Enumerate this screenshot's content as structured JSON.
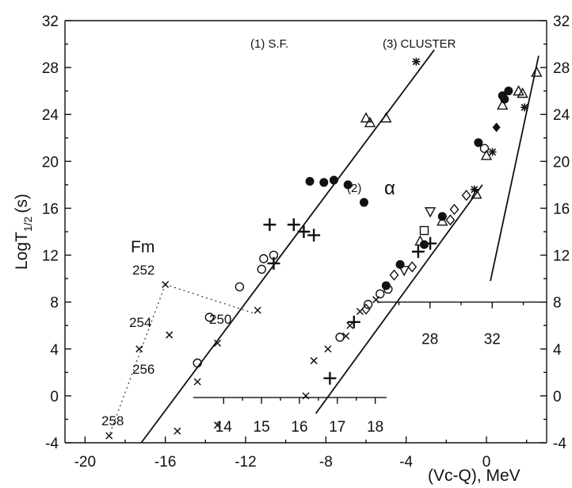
{
  "chart_data": {
    "type": "scatter",
    "xlabel": "(Vc-Q), MeV",
    "ylabel_main": "LogT",
    "ylabel_sub": "1/2",
    "ylabel_unit": "(s)",
    "xlim": [
      -21,
      3
    ],
    "ylim": [
      -4,
      32
    ],
    "x_ticks": [
      -20,
      -16,
      -12,
      -8,
      -4,
      0
    ],
    "y_ticks": [
      -4,
      0,
      4,
      8,
      12,
      16,
      20,
      24,
      28,
      32
    ],
    "grid": false,
    "annotations": {
      "sf": "(1)  S.F.",
      "cluster": "(3)  CLUSTER",
      "alpha_num": "(2)",
      "alpha_sym": "α",
      "fm": "Fm",
      "isotopes": [
        "252",
        "254",
        "250",
        "256",
        "258"
      ]
    },
    "inset_alpha_axis": {
      "ticks": [
        14,
        15,
        16,
        17,
        18
      ],
      "range": [
        13.2,
        18.3
      ]
    },
    "inset_cluster_axis": {
      "ticks": [
        28,
        32
      ],
      "range": [
        24.6,
        35.5
      ]
    },
    "series": [
      {
        "id": "sf",
        "fit_line": [
          [
            -17.2,
            -4
          ],
          [
            -2.6,
            29.5
          ]
        ],
        "points": [
          {
            "x": -3.5,
            "y": 28.5,
            "m": "asterisk"
          },
          {
            "x": -6.0,
            "y": 23.7,
            "m": "triangle"
          },
          {
            "x": -5.8,
            "y": 23.3,
            "m": "triangle"
          },
          {
            "x": -5.0,
            "y": 23.7,
            "m": "triangle"
          },
          {
            "x": -8.8,
            "y": 18.3,
            "m": "filled"
          },
          {
            "x": -8.1,
            "y": 18.2,
            "m": "filled"
          },
          {
            "x": -7.6,
            "y": 18.4,
            "m": "filled"
          },
          {
            "x": -6.9,
            "y": 18.0,
            "m": "filled"
          },
          {
            "x": -6.1,
            "y": 16.5,
            "m": "filled"
          },
          {
            "x": -10.8,
            "y": 14.6,
            "m": "plus"
          },
          {
            "x": -9.6,
            "y": 14.6,
            "m": "plus"
          },
          {
            "x": -9.1,
            "y": 14.0,
            "m": "plus"
          },
          {
            "x": -8.6,
            "y": 13.7,
            "m": "plus"
          },
          {
            "x": -10.6,
            "y": 11.3,
            "m": "plus"
          },
          {
            "x": -11.1,
            "y": 11.7,
            "m": "circle"
          },
          {
            "x": -10.6,
            "y": 12.0,
            "m": "circle"
          },
          {
            "x": -11.2,
            "y": 10.8,
            "m": "circle"
          },
          {
            "x": -12.3,
            "y": 9.3,
            "m": "circle"
          },
          {
            "x": -13.8,
            "y": 6.7,
            "m": "circle"
          },
          {
            "x": -14.4,
            "y": 2.8,
            "m": "circle"
          }
        ]
      },
      {
        "id": "fm",
        "points": [
          {
            "x": -16.0,
            "y": 9.5,
            "m": "cross"
          },
          {
            "x": -11.4,
            "y": 7.3,
            "m": "cross"
          },
          {
            "x": -15.8,
            "y": 5.2,
            "m": "cross"
          },
          {
            "x": -17.3,
            "y": 4.0,
            "m": "cross"
          },
          {
            "x": -13.4,
            "y": 4.5,
            "m": "cross"
          },
          {
            "x": -14.4,
            "y": 1.2,
            "m": "cross"
          },
          {
            "x": -15.4,
            "y": -3.0,
            "m": "cross"
          },
          {
            "x": -13.4,
            "y": -2.5,
            "m": "cross"
          },
          {
            "x": -18.8,
            "y": -3.4,
            "m": "cross"
          }
        ]
      },
      {
        "id": "alpha",
        "fit_line": [
          [
            -8.5,
            -1.5
          ],
          [
            -0.2,
            18.0
          ]
        ],
        "points": [
          {
            "x": -0.6,
            "y": 17.6,
            "m": "asterisk"
          },
          {
            "x": -0.5,
            "y": 17.2,
            "m": "triangle"
          },
          {
            "x": -2.2,
            "y": 15.3,
            "m": "filled"
          },
          {
            "x": -2.2,
            "y": 14.9,
            "m": "triangle"
          },
          {
            "x": -3.1,
            "y": 12.9,
            "m": "filled"
          },
          {
            "x": -2.8,
            "y": 13.0,
            "m": "plus"
          },
          {
            "x": -3.4,
            "y": 12.3,
            "m": "plus"
          },
          {
            "x": -4.3,
            "y": 11.2,
            "m": "filled"
          },
          {
            "x": -4.1,
            "y": 10.7,
            "m": "invtri"
          },
          {
            "x": -4.6,
            "y": 10.3,
            "m": "diamond"
          },
          {
            "x": -5.0,
            "y": 9.4,
            "m": "filled"
          },
          {
            "x": -4.9,
            "y": 9.1,
            "m": "circle"
          },
          {
            "x": -5.3,
            "y": 8.7,
            "m": "circle"
          },
          {
            "x": -5.5,
            "y": 8.2,
            "m": "cross"
          },
          {
            "x": -5.9,
            "y": 7.8,
            "m": "circle"
          },
          {
            "x": -6.0,
            "y": 7.4,
            "m": "diamond"
          },
          {
            "x": -6.3,
            "y": 7.2,
            "m": "cross"
          },
          {
            "x": -6.6,
            "y": 6.3,
            "m": "plus"
          },
          {
            "x": -6.8,
            "y": 6.0,
            "m": "cross"
          },
          {
            "x": -7.0,
            "y": 5.1,
            "m": "cross"
          },
          {
            "x": -7.3,
            "y": 5.0,
            "m": "circle"
          },
          {
            "x": -7.9,
            "y": 4.0,
            "m": "cross"
          },
          {
            "x": -8.6,
            "y": 3.0,
            "m": "cross"
          },
          {
            "x": -7.8,
            "y": 1.5,
            "m": "plus"
          },
          {
            "x": -9.0,
            "y": 0.0,
            "m": "cross"
          }
        ]
      },
      {
        "id": "cluster",
        "fit_line": [
          [
            0.2,
            9.8
          ],
          [
            2.6,
            29.0
          ]
        ],
        "points": [
          {
            "x": 2.5,
            "y": 27.6,
            "m": "triangle"
          },
          {
            "x": 1.6,
            "y": 26.0,
            "m": "triangle"
          },
          {
            "x": 1.8,
            "y": 25.8,
            "m": "triangle"
          },
          {
            "x": 1.1,
            "y": 26.0,
            "m": "filled"
          },
          {
            "x": 0.8,
            "y": 25.6,
            "m": "filled"
          },
          {
            "x": 0.9,
            "y": 25.3,
            "m": "filled"
          },
          {
            "x": 0.8,
            "y": 24.8,
            "m": "triangle"
          },
          {
            "x": 1.9,
            "y": 24.6,
            "m": "asterisk"
          },
          {
            "x": 0.5,
            "y": 22.9,
            "m": "filleddiamond"
          },
          {
            "x": -0.4,
            "y": 21.6,
            "m": "filled"
          },
          {
            "x": -0.1,
            "y": 21.1,
            "m": "circle"
          },
          {
            "x": 0.0,
            "y": 20.5,
            "m": "triangle"
          },
          {
            "x": 0.3,
            "y": 20.8,
            "m": "asterisk"
          },
          {
            "x": -1.0,
            "y": 17.1,
            "m": "diamond"
          },
          {
            "x": -1.6,
            "y": 15.9,
            "m": "diamond"
          },
          {
            "x": -1.8,
            "y": 15.0,
            "m": "diamond"
          },
          {
            "x": -2.8,
            "y": 15.7,
            "m": "invtri"
          },
          {
            "x": -3.3,
            "y": 13.2,
            "m": "triangle"
          },
          {
            "x": -3.1,
            "y": 14.1,
            "m": "square"
          },
          {
            "x": -3.7,
            "y": 11.0,
            "m": "diamond"
          }
        ]
      },
      {
        "id": "fm-isotope-guides",
        "points": [
          {
            "x": -16.0,
            "y": 9.5,
            "m": "none"
          },
          {
            "x": -11.4,
            "y": 7.3,
            "m": "none"
          }
        ]
      }
    ]
  }
}
